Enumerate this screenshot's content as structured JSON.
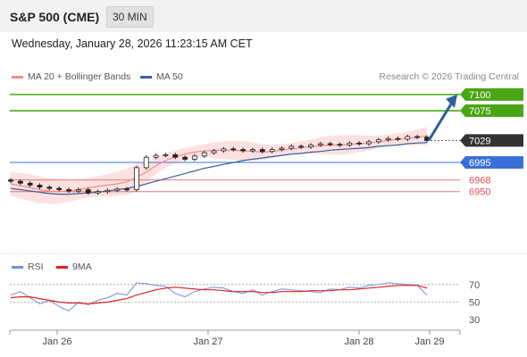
{
  "header": {
    "symbol": "S&P 500 (CME)",
    "interval": "30 MIN"
  },
  "datetime": "Wednesday, January 28, 2026 11:23:15 AM CET",
  "legend": {
    "ma_bb": "MA 20 + Bollinger Bands",
    "ma50": "MA 50",
    "rsi": "RSI",
    "rsi_ma": "9MA"
  },
  "credit": "Research © 2026 Trading Central",
  "colors": {
    "ma20": "#f28c8c",
    "ma50": "#3a5f9e",
    "bands": "#fde1e1",
    "candle": "#222222",
    "resistance": "#4aa516",
    "support": "#3a6fd8",
    "target": "#e05050",
    "arrow": "#2f5f9a",
    "price": "#333333",
    "rsi": "#6f8fe0",
    "rsi_ma": "#e02020"
  },
  "chart_data": [
    {
      "type": "line",
      "title": "S&P 500 (CME) 30 MIN",
      "x_ticks": [
        "Jan 26",
        "Jan 27",
        "Jan 28",
        "Jan 29"
      ],
      "ylim": [
        6860,
        7115
      ],
      "series": [
        {
          "name": "MA 20 + Bollinger Bands",
          "values": [
            6962,
            6959,
            6956,
            6953,
            6951,
            6950,
            6951,
            6953,
            6956,
            6958,
            6960,
            6962,
            6965,
            6972,
            6980,
            6990,
            6998,
            7004,
            7008,
            7011,
            7013,
            7014,
            7014,
            7014,
            7013,
            7012,
            7011,
            7012,
            7014,
            7016,
            7018,
            7019,
            7021,
            7022,
            7022,
            7023,
            7024,
            7025,
            7027,
            7029,
            7031,
            7032,
            7034,
            7036
          ]
        },
        {
          "name": "MA 50",
          "values": [
            6955,
            6953,
            6951,
            6949,
            6947,
            6946,
            6946,
            6947,
            6948,
            6949,
            6951,
            6953,
            6955,
            6958,
            6962,
            6966,
            6970,
            6974,
            6978,
            6982,
            6986,
            6989,
            6992,
            6995,
            6998,
            7000,
            7002,
            7004,
            7006,
            7008,
            7009,
            7011,
            7012,
            7014,
            7015,
            7016,
            7017,
            7018,
            7020,
            7021,
            7022,
            7024,
            7025,
            7026
          ]
        }
      ],
      "close": [
        6966,
        6963,
        6960,
        6957,
        6955,
        6953,
        6951,
        6953,
        6948,
        6950,
        6952,
        6954,
        6953,
        6987,
        7003,
        7006,
        7007,
        7003,
        7000,
        7005,
        7010,
        7013,
        7016,
        7015,
        7013,
        7015,
        7012,
        7015,
        7017,
        7020,
        7019,
        7022,
        7024,
        7023,
        7022,
        7025,
        7024,
        7027,
        7030,
        7032,
        7031,
        7035,
        7034,
        7029
      ],
      "levels": [
        {
          "value": 7100,
          "label": "7100",
          "kind": "resistance"
        },
        {
          "value": 7075,
          "label": "7075",
          "kind": "resistance"
        },
        {
          "value": 7029,
          "label": "7029",
          "kind": "price"
        },
        {
          "value": 6995,
          "label": "6995",
          "kind": "support"
        },
        {
          "value": 6968,
          "label": "6968",
          "kind": "target"
        },
        {
          "value": 6950,
          "label": "6950",
          "kind": "target"
        }
      ]
    },
    {
      "type": "line",
      "title": "RSI",
      "ylim": [
        20,
        80
      ],
      "y_ticks": [
        70,
        50,
        30
      ],
      "series": [
        {
          "name": "RSI",
          "values": [
            58,
            62,
            55,
            48,
            52,
            45,
            40,
            50,
            47,
            52,
            55,
            60,
            58,
            72,
            71,
            69,
            68,
            60,
            56,
            62,
            65,
            67,
            66,
            62,
            60,
            64,
            58,
            62,
            65,
            64,
            63,
            62,
            61,
            65,
            64,
            67,
            66,
            69,
            70,
            72,
            71,
            70,
            69,
            58
          ]
        },
        {
          "name": "9MA",
          "values": [
            55,
            56,
            56,
            54,
            52,
            50,
            49,
            49,
            48,
            49,
            50,
            52,
            54,
            58,
            61,
            64,
            66,
            67,
            66,
            65,
            64,
            64,
            63,
            62,
            62,
            62,
            61,
            61,
            62,
            62,
            62,
            63,
            63,
            63,
            64,
            64,
            65,
            66,
            67,
            68,
            69,
            69,
            69,
            66
          ]
        }
      ]
    }
  ]
}
